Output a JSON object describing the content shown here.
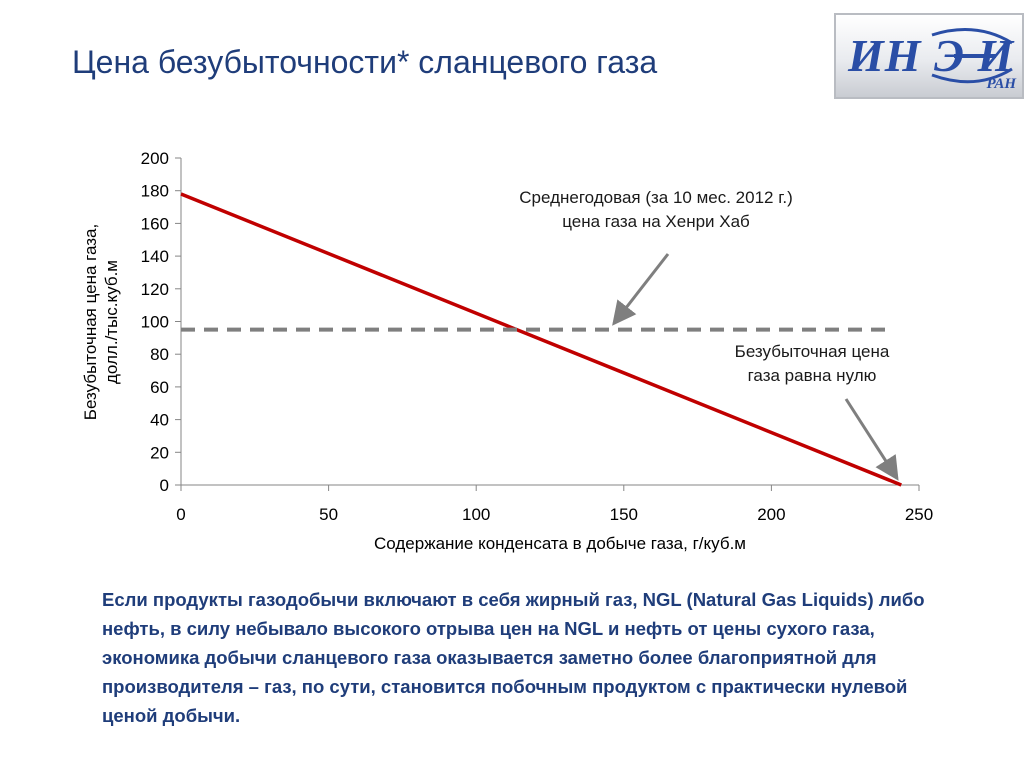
{
  "slide": {
    "title": "Цена безубыточности* сланцевого газа",
    "body_text": "Если продукты газодобычи включают в себя жирный газ, NGL (Natural Gas Liquids) либо нефть, в силу небывало высокого отрыва цен на NGL и нефть от цены сухого газа, экономика добычи сланцевого газа оказывается заметно более благоприятной для производителя – газ, по сути, становится побочным продуктом с практически нулевой ценой добычи."
  },
  "logo": {
    "text": "ИН Э И",
    "sub": "РАН",
    "color": "#2a4ea6"
  },
  "chart_data": {
    "type": "line",
    "xlabel": "Содержание конденсата в добыче газа, г/куб.м",
    "ylabel_lines": [
      "Безубыточная цена газа,",
      "долл./тыс.куб.м"
    ],
    "xlim": [
      0,
      250
    ],
    "ylim": [
      0,
      200
    ],
    "x_ticks": [
      0,
      50,
      100,
      150,
      200,
      250
    ],
    "y_ticks": [
      0,
      20,
      40,
      60,
      80,
      100,
      120,
      140,
      160,
      180,
      200
    ],
    "grid": false,
    "series": [
      {
        "style": "solid",
        "color": "#c00000",
        "x": [
          0,
          244
        ],
        "y": [
          178,
          0
        ]
      },
      {
        "style": "dashed",
        "color": "#7f7f7f",
        "x": [
          0,
          240
        ],
        "y": [
          95,
          95
        ]
      }
    ],
    "annotations": [
      {
        "lines": [
          "Среднегодовая (за 10 мес. 2012 г.)",
          "цена газа на Хенри Хаб"
        ],
        "arrow_to": [
          145,
          95
        ]
      },
      {
        "lines": [
          "Безубыточная цена",
          "газа равна нулю"
        ],
        "arrow_to": [
          244,
          0
        ]
      }
    ]
  }
}
